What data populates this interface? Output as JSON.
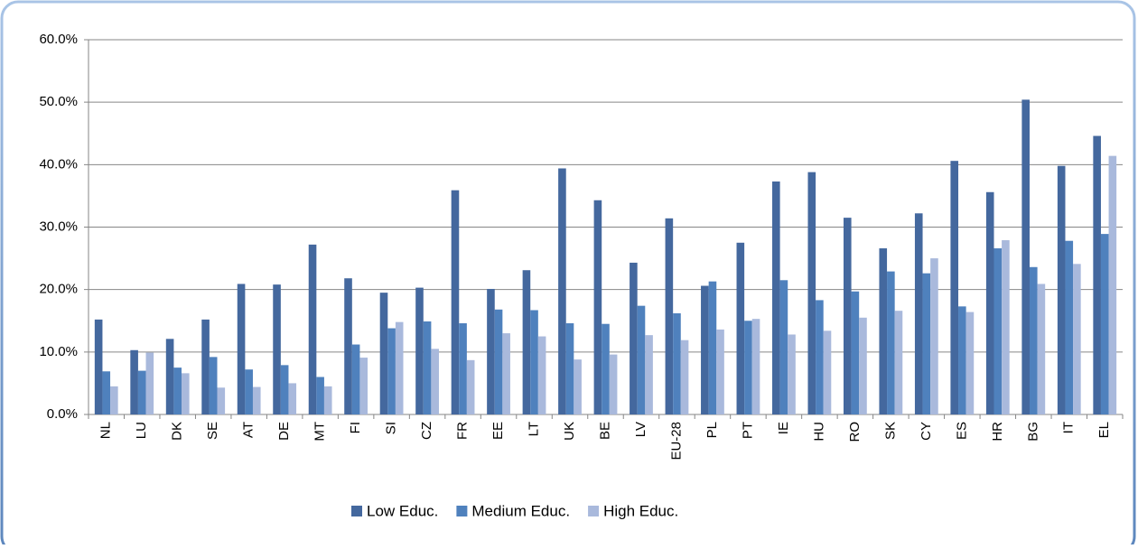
{
  "chart_data": {
    "type": "bar",
    "categories": [
      "NL",
      "LU",
      "DK",
      "SE",
      "AT",
      "DE",
      "MT",
      "FI",
      "SI",
      "CZ",
      "FR",
      "EE",
      "LT",
      "UK",
      "BE",
      "LV",
      "EU-28",
      "PL",
      "PT",
      "IE",
      "HU",
      "RO",
      "SK",
      "CY",
      "ES",
      "HR",
      "BG",
      "IT",
      "EL"
    ],
    "series": [
      {
        "name": "Low Educ.",
        "color": "#44689e",
        "values": [
          15.2,
          10.3,
          12.1,
          15.2,
          20.9,
          20.8,
          27.2,
          21.8,
          19.5,
          20.3,
          35.9,
          20.1,
          23.1,
          39.4,
          34.3,
          24.3,
          31.4,
          20.6,
          27.5,
          37.3,
          38.8,
          31.5,
          26.6,
          32.2,
          40.6,
          35.6,
          50.4,
          39.8,
          44.6
        ]
      },
      {
        "name": "Medium Educ.",
        "color": "#4f81bd",
        "values": [
          6.9,
          7.0,
          7.5,
          9.2,
          7.2,
          7.9,
          6.0,
          11.2,
          13.8,
          14.9,
          14.6,
          16.8,
          16.7,
          14.6,
          14.5,
          17.4,
          16.2,
          21.3,
          15.0,
          21.5,
          18.3,
          19.7,
          22.9,
          22.6,
          17.3,
          26.6,
          23.6,
          27.8,
          28.9
        ]
      },
      {
        "name": "High Educ.",
        "color": "#a9b9dc",
        "values": [
          4.5,
          9.9,
          6.6,
          4.3,
          4.4,
          5.0,
          4.5,
          9.1,
          14.8,
          10.5,
          8.7,
          13.0,
          12.5,
          8.8,
          9.6,
          12.7,
          11.9,
          13.6,
          15.3,
          12.8,
          13.4,
          15.5,
          16.6,
          25.0,
          16.4,
          27.9,
          20.9,
          24.1,
          41.4
        ]
      }
    ],
    "ylim": [
      0,
      60
    ],
    "yticks": [
      {
        "value": 0,
        "label": "0.0%"
      },
      {
        "value": 10,
        "label": "10.0%"
      },
      {
        "value": 20,
        "label": "20.0%"
      },
      {
        "value": 30,
        "label": "30.0%"
      },
      {
        "value": 40,
        "label": "40.0%"
      },
      {
        "value": 50,
        "label": "50.0%"
      },
      {
        "value": 60,
        "label": "60.0%"
      }
    ],
    "grid": true,
    "legend": "bottom"
  }
}
